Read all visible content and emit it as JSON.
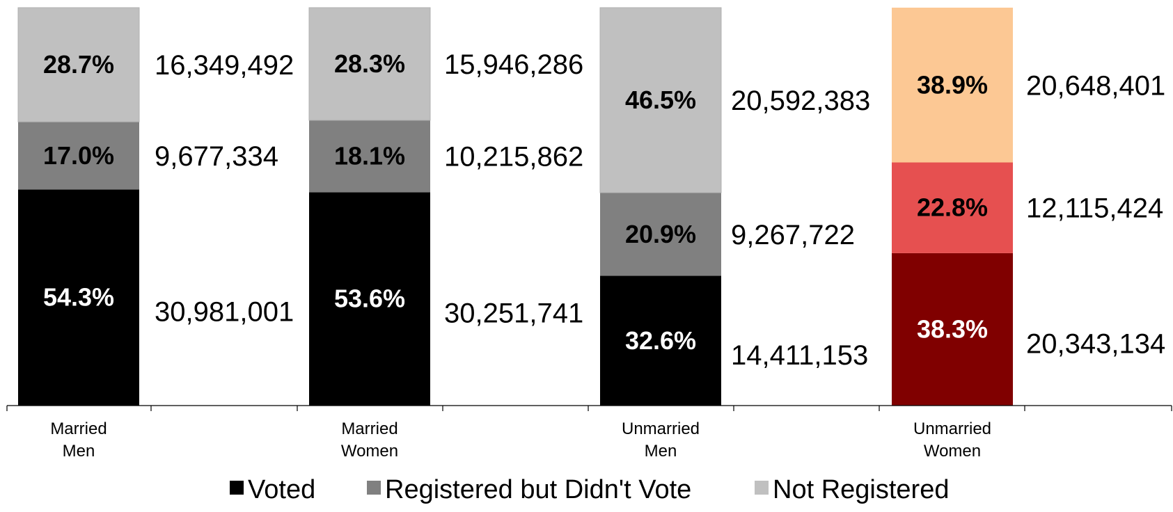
{
  "chart_data": {
    "type": "bar",
    "stacked": "percent",
    "categories": [
      [
        "Married",
        "Men"
      ],
      [
        "Married",
        "Women"
      ],
      [
        "Unmarried",
        "Men"
      ],
      [
        "Unmarried",
        "Women"
      ]
    ],
    "series": [
      {
        "name": "Voted",
        "percent_labels": [
          "54.3%",
          "53.6%",
          "32.6%",
          "38.3%"
        ],
        "values": [
          54.3,
          53.6,
          32.6,
          38.3
        ],
        "counts": [
          "30,981,001",
          "30,251,741",
          "14,411,153",
          "20,343,134"
        ]
      },
      {
        "name": "Registered but Didn't Vote",
        "percent_labels": [
          "17.0%",
          "18.1%",
          "20.9%",
          "22.8%"
        ],
        "values": [
          17.0,
          18.1,
          20.9,
          22.8
        ],
        "counts": [
          "9,677,334",
          "10,215,862",
          "9,267,722",
          "12,115,424"
        ]
      },
      {
        "name": "Not Registered",
        "percent_labels": [
          "28.7%",
          "28.3%",
          "46.5%",
          "38.9%"
        ],
        "values": [
          28.7,
          28.3,
          46.5,
          38.9
        ],
        "counts": [
          "16,349,492",
          "15,946,286",
          "20,592,383",
          "20,648,401"
        ]
      }
    ],
    "colors": {
      "default": [
        "#000000",
        "#808080",
        "#c0c0c0"
      ],
      "highlight": [
        "#800000",
        "#e65050",
        "#fcc894"
      ],
      "highlight_category_index": 3
    },
    "ylim": [
      0,
      100
    ],
    "grid": false,
    "legend": "bottom-center"
  }
}
